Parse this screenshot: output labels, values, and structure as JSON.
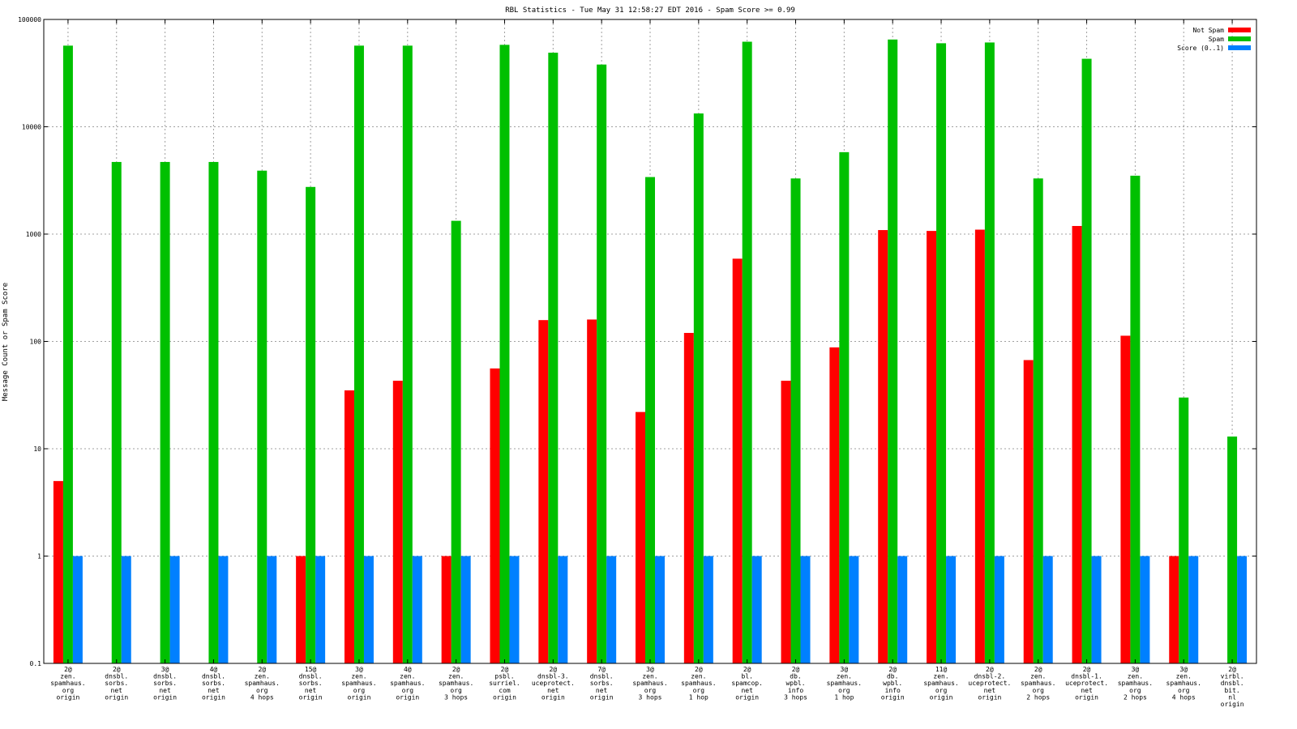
{
  "chart_data": {
    "type": "bar",
    "title": "RBL Statistics - Tue May 31 12:58:27 EDT 2016 - Spam Score >= 0.99",
    "ylabel": "Message Count or Spam Score",
    "xlabel": "",
    "yscale": "log",
    "ylim": [
      0.1,
      100000
    ],
    "yticks": [
      "0.1",
      "1",
      "10",
      "100",
      "1000",
      "10000",
      "100000"
    ],
    "grid": true,
    "legend_position": "top-right",
    "categories": [
      [
        "2@",
        "zen.",
        "spamhaus.",
        "org",
        "origin"
      ],
      [
        "2@",
        "dnsbl.",
        "sorbs.",
        "net",
        "origin"
      ],
      [
        "3@",
        "dnsbl.",
        "sorbs.",
        "net",
        "origin"
      ],
      [
        "4@",
        "dnsbl.",
        "sorbs.",
        "net",
        "origin"
      ],
      [
        "2@",
        "zen.",
        "spamhaus.",
        "org",
        "4 hops"
      ],
      [
        "15@",
        "dnsbl.",
        "sorbs.",
        "net",
        "origin"
      ],
      [
        "3@",
        "zen.",
        "spamhaus.",
        "org",
        "origin"
      ],
      [
        "4@",
        "zen.",
        "spamhaus.",
        "org",
        "origin"
      ],
      [
        "2@",
        "zen.",
        "spamhaus.",
        "org",
        "3 hops"
      ],
      [
        "2@",
        "psbl.",
        "surriel.",
        "com",
        "origin"
      ],
      [
        "2@",
        "dnsbl-3.",
        "uceprotect.",
        "net",
        "origin"
      ],
      [
        "7@",
        "dnsbl.",
        "sorbs.",
        "net",
        "origin"
      ],
      [
        "3@",
        "zen.",
        "spamhaus.",
        "org",
        "3 hops"
      ],
      [
        "2@",
        "zen.",
        "spamhaus.",
        "org",
        "1 hop"
      ],
      [
        "2@",
        "bl.",
        "spamcop.",
        "net",
        "origin"
      ],
      [
        "2@",
        "db.",
        "wpbl.",
        "info",
        "3 hops"
      ],
      [
        "3@",
        "zen.",
        "spamhaus.",
        "org",
        "1 hop"
      ],
      [
        "2@",
        "db.",
        "wpbl.",
        "info",
        "origin"
      ],
      [
        "11@",
        "zen.",
        "spamhaus.",
        "org",
        "origin"
      ],
      [
        "2@",
        "dnsbl-2.",
        "uceprotect.",
        "net",
        "origin"
      ],
      [
        "2@",
        "zen.",
        "spamhaus.",
        "org",
        "2 hops"
      ],
      [
        "2@",
        "dnsbl-1.",
        "uceprotect.",
        "net",
        "origin"
      ],
      [
        "3@",
        "zen.",
        "spamhaus.",
        "org",
        "2 hops"
      ],
      [
        "3@",
        "zen.",
        "spamhaus.",
        "org",
        "4 hops"
      ],
      [
        "2@",
        "virbl.",
        "dnsbl.",
        "bit.",
        "nl",
        "origin"
      ]
    ],
    "series": [
      {
        "name": "Not Spam",
        "color": "#ff0000",
        "values": [
          5,
          0,
          0,
          0,
          0,
          1,
          35,
          43,
          1,
          56,
          158,
          160,
          22,
          120,
          590,
          43,
          88,
          1090,
          1070,
          1100,
          67,
          1190,
          113,
          1,
          0
        ]
      },
      {
        "name": "Spam",
        "color": "#00c000",
        "values": [
          57000,
          4700,
          4700,
          4700,
          3900,
          2750,
          57000,
          57000,
          1330,
          58000,
          49000,
          38000,
          3400,
          13300,
          62000,
          3300,
          5800,
          65000,
          60000,
          61000,
          3300,
          43000,
          3500,
          30,
          13
        ]
      },
      {
        "name": "Score (0..1)",
        "color": "#0080ff",
        "values": [
          1,
          1,
          1,
          1,
          1,
          1,
          1,
          1,
          1,
          1,
          1,
          1,
          1,
          1,
          1,
          1,
          1,
          1,
          1,
          1,
          1,
          1,
          1,
          1,
          1
        ]
      }
    ]
  }
}
